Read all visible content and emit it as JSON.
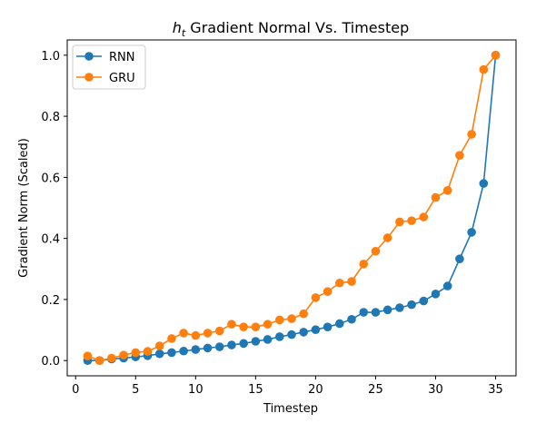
{
  "chart_data": {
    "type": "line",
    "title": "h_t Gradient Normal Vs. Timestep",
    "title_math": "h",
    "title_sub": "t",
    "title_rest": " Gradient Normal Vs. Timestep",
    "xlabel": "Timestep",
    "ylabel": "Gradient Norm (Scaled)",
    "xlim": [
      -0.7,
      36.7
    ],
    "ylim": [
      -0.05,
      1.05
    ],
    "xticks": [
      0,
      5,
      10,
      15,
      20,
      25,
      30,
      35
    ],
    "yticks": [
      0.0,
      0.2,
      0.4,
      0.6,
      0.8,
      1.0
    ],
    "ytick_labels": [
      "0.0",
      "0.2",
      "0.4",
      "0.6",
      "0.8",
      "1.0"
    ],
    "legend_position": "upper-left",
    "x": [
      1,
      2,
      3,
      4,
      5,
      6,
      7,
      8,
      9,
      10,
      11,
      12,
      13,
      14,
      15,
      16,
      17,
      18,
      19,
      20,
      21,
      22,
      23,
      24,
      25,
      26,
      27,
      28,
      29,
      30,
      31,
      32,
      33,
      34,
      35
    ],
    "series": [
      {
        "name": "RNN",
        "color": "#1f77b4",
        "values": [
          0.0,
          0.0,
          0.005,
          0.008,
          0.012,
          0.016,
          0.022,
          0.026,
          0.031,
          0.036,
          0.041,
          0.045,
          0.051,
          0.056,
          0.063,
          0.069,
          0.078,
          0.085,
          0.093,
          0.101,
          0.11,
          0.121,
          0.135,
          0.158,
          0.158,
          0.166,
          0.173,
          0.183,
          0.195,
          0.218,
          0.244,
          0.333,
          0.42,
          0.58,
          1.0
        ]
      },
      {
        "name": "GRU",
        "color": "#ff7f0e",
        "values": [
          0.015,
          0.0,
          0.008,
          0.018,
          0.026,
          0.03,
          0.048,
          0.072,
          0.09,
          0.082,
          0.09,
          0.097,
          0.119,
          0.11,
          0.11,
          0.119,
          0.133,
          0.137,
          0.153,
          0.206,
          0.226,
          0.254,
          0.259,
          0.316,
          0.358,
          0.402,
          0.454,
          0.458,
          0.47,
          0.534,
          0.557,
          0.672,
          0.741,
          0.953,
          1.0
        ]
      }
    ]
  }
}
